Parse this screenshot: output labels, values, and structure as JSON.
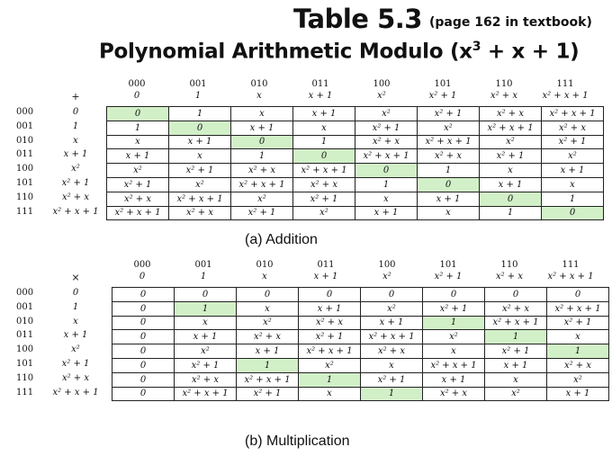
{
  "title": "Table 5.3",
  "title_note": "(page 162 in textbook)",
  "subtitle_prefix": "Polynomial Arithmetic Modulo (x",
  "subtitle_sup": "3",
  "subtitle_suffix": " + x + 1)",
  "col_bits": [
    "000",
    "001",
    "010",
    "011",
    "100",
    "101",
    "110",
    "111"
  ],
  "row_bits": [
    "000",
    "001",
    "010",
    "011",
    "100",
    "101",
    "110",
    "111"
  ],
  "polys": [
    "0",
    "1",
    "x",
    "x + 1",
    "x²",
    "x² + 1",
    "x² + x",
    "x² + x + 1"
  ],
  "addition": {
    "caption": "(a) Addition",
    "op": "+",
    "rows": [
      [
        "0",
        "1",
        "x",
        "x + 1",
        "x²",
        "x² + 1",
        "x² + x",
        "x² + x + 1"
      ],
      [
        "1",
        "0",
        "x + 1",
        "x",
        "x² + 1",
        "x²",
        "x² + x + 1",
        "x² + x"
      ],
      [
        "x",
        "x + 1",
        "0",
        "1",
        "x² + x",
        "x² + x + 1",
        "x²",
        "x² + 1"
      ],
      [
        "x + 1",
        "x",
        "1",
        "0",
        "x² + x + 1",
        "x² + x",
        "x² + 1",
        "x²"
      ],
      [
        "x²",
        "x² + 1",
        "x² + x",
        "x² + x + 1",
        "0",
        "1",
        "x",
        "x + 1"
      ],
      [
        "x² + 1",
        "x²",
        "x² + x + 1",
        "x² + x",
        "1",
        "0",
        "x + 1",
        "x"
      ],
      [
        "x² + x",
        "x² + x + 1",
        "x²",
        "x² + 1",
        "x",
        "x + 1",
        "0",
        "1"
      ],
      [
        "x² + x + 1",
        "x² + x",
        "x² + 1",
        "x²",
        "x + 1",
        "x",
        "1",
        "0"
      ]
    ],
    "highlight_color": "#d2f0c8"
  },
  "multiplication": {
    "caption": "(b) Multiplication",
    "op": "×",
    "rows": [
      [
        "0",
        "0",
        "0",
        "0",
        "0",
        "0",
        "0",
        "0"
      ],
      [
        "0",
        "1",
        "x",
        "x + 1",
        "x²",
        "x² + 1",
        "x² + x",
        "x² + x + 1"
      ],
      [
        "0",
        "x",
        "x²",
        "x² + x",
        "x + 1",
        "1",
        "x² + x + 1",
        "x² + 1"
      ],
      [
        "0",
        "x + 1",
        "x² + x",
        "x² + 1",
        "x² + x + 1",
        "x²",
        "1",
        "x"
      ],
      [
        "0",
        "x²",
        "x + 1",
        "x² + x + 1",
        "x² + x",
        "x",
        "x² + 1",
        "1"
      ],
      [
        "0",
        "x² + 1",
        "1",
        "x²",
        "x",
        "x² + x + 1",
        "x + 1",
        "x² + x"
      ],
      [
        "0",
        "x² + x",
        "x² + x + 1",
        "1",
        "x² + 1",
        "x + 1",
        "x",
        "x²"
      ],
      [
        "0",
        "x² + x + 1",
        "x² + 1",
        "x",
        "1",
        "x² + x",
        "x²",
        "x + 1"
      ]
    ],
    "highlight_cells": [
      [
        1,
        1
      ],
      [
        2,
        5
      ],
      [
        3,
        6
      ],
      [
        4,
        7
      ],
      [
        5,
        2
      ],
      [
        6,
        3
      ],
      [
        7,
        4
      ]
    ]
  }
}
